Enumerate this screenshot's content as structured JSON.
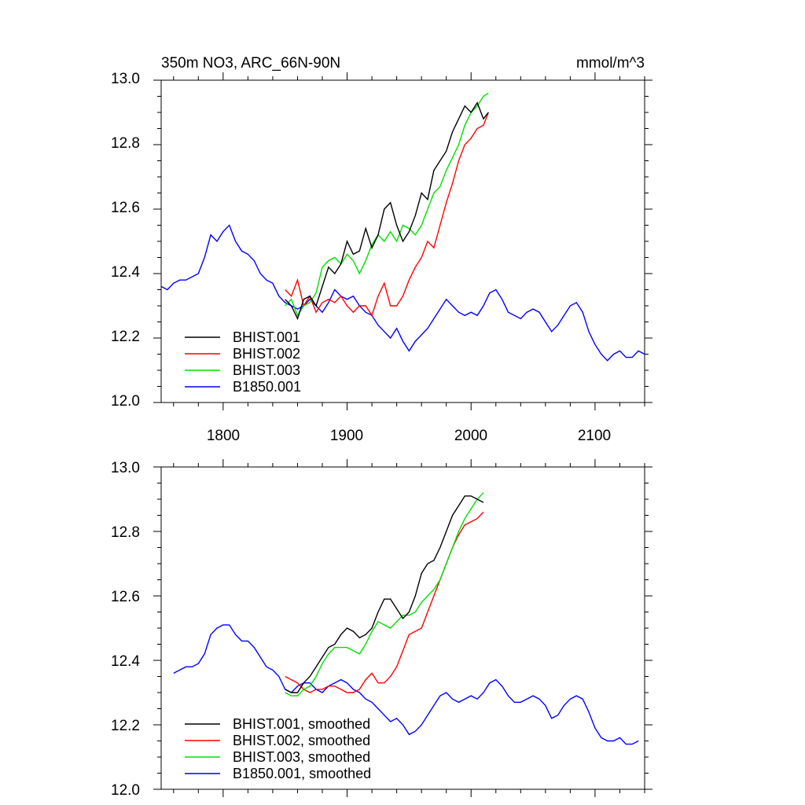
{
  "chart_data": [
    {
      "type": "line",
      "title": "350m NO3, ARC_66N-90N",
      "units": "mmol/m^3",
      "xlabel": "",
      "ylabel": "",
      "xlim": [
        1750,
        2140
      ],
      "ylim": [
        12.0,
        13.0
      ],
      "xticks": [
        1800,
        1900,
        2000,
        2100
      ],
      "yticks": [
        12.0,
        12.2,
        12.4,
        12.6,
        12.8,
        13.0
      ],
      "grid": false,
      "legend_position": "bottom-left",
      "series": [
        {
          "name": "BHIST.001",
          "color": "#000000",
          "smoothed": false,
          "x": [
            1850,
            1855,
            1860,
            1865,
            1870,
            1875,
            1880,
            1885,
            1890,
            1895,
            1900,
            1905,
            1910,
            1915,
            1920,
            1925,
            1930,
            1935,
            1940,
            1945,
            1950,
            1955,
            1960,
            1965,
            1970,
            1975,
            1980,
            1985,
            1990,
            1995,
            2000,
            2005,
            2010,
            2014
          ],
          "y": [
            12.32,
            12.3,
            12.26,
            12.32,
            12.33,
            12.3,
            12.36,
            12.42,
            12.4,
            12.43,
            12.5,
            12.46,
            12.47,
            12.54,
            12.48,
            12.52,
            12.6,
            12.62,
            12.55,
            12.5,
            12.53,
            12.58,
            12.65,
            12.63,
            12.72,
            12.75,
            12.78,
            12.84,
            12.88,
            12.92,
            12.9,
            12.93,
            12.88,
            12.9
          ]
        },
        {
          "name": "BHIST.002",
          "color": "#ff0000",
          "smoothed": false,
          "x": [
            1850,
            1855,
            1860,
            1865,
            1870,
            1875,
            1880,
            1885,
            1890,
            1895,
            1900,
            1905,
            1910,
            1915,
            1920,
            1925,
            1930,
            1935,
            1940,
            1945,
            1950,
            1955,
            1960,
            1965,
            1970,
            1975,
            1980,
            1985,
            1990,
            1995,
            2000,
            2005,
            2010,
            2014
          ],
          "y": [
            12.35,
            12.33,
            12.38,
            12.3,
            12.33,
            12.28,
            12.31,
            12.32,
            12.31,
            12.33,
            12.3,
            12.28,
            12.3,
            12.3,
            12.27,
            12.33,
            12.37,
            12.3,
            12.3,
            12.33,
            12.38,
            12.42,
            12.45,
            12.5,
            12.48,
            12.55,
            12.62,
            12.68,
            12.75,
            12.8,
            12.82,
            12.85,
            12.86,
            12.9
          ]
        },
        {
          "name": "BHIST.003",
          "color": "#00e000",
          "smoothed": false,
          "x": [
            1850,
            1855,
            1860,
            1865,
            1870,
            1875,
            1880,
            1885,
            1890,
            1895,
            1900,
            1905,
            1910,
            1915,
            1920,
            1925,
            1930,
            1935,
            1940,
            1945,
            1950,
            1955,
            1960,
            1965,
            1970,
            1975,
            1980,
            1985,
            1990,
            1995,
            2000,
            2005,
            2010,
            2014
          ],
          "y": [
            12.3,
            12.32,
            12.27,
            12.3,
            12.31,
            12.34,
            12.42,
            12.44,
            12.45,
            12.43,
            12.46,
            12.44,
            12.4,
            12.44,
            12.49,
            12.52,
            12.5,
            12.53,
            12.5,
            12.55,
            12.54,
            12.52,
            12.55,
            12.6,
            12.65,
            12.67,
            12.72,
            12.76,
            12.8,
            12.86,
            12.9,
            12.92,
            12.95,
            12.96
          ]
        },
        {
          "name": "B1850.001",
          "color": "#0000ff",
          "smoothed": false,
          "x": [
            1750,
            1755,
            1760,
            1765,
            1770,
            1775,
            1780,
            1785,
            1790,
            1795,
            1800,
            1805,
            1810,
            1815,
            1820,
            1825,
            1830,
            1835,
            1840,
            1845,
            1850,
            1855,
            1860,
            1865,
            1870,
            1875,
            1880,
            1885,
            1890,
            1895,
            1900,
            1905,
            1910,
            1915,
            1920,
            1925,
            1930,
            1935,
            1940,
            1945,
            1950,
            1955,
            1960,
            1965,
            1970,
            1975,
            1980,
            1985,
            1990,
            1995,
            2000,
            2005,
            2010,
            2015,
            2020,
            2025,
            2030,
            2035,
            2040,
            2045,
            2050,
            2055,
            2060,
            2065,
            2070,
            2075,
            2080,
            2085,
            2090,
            2095,
            2100,
            2105,
            2110,
            2115,
            2120,
            2125,
            2130,
            2135,
            2140
          ],
          "y": [
            12.36,
            12.35,
            12.37,
            12.38,
            12.38,
            12.39,
            12.4,
            12.45,
            12.52,
            12.5,
            12.53,
            12.55,
            12.5,
            12.47,
            12.46,
            12.44,
            12.4,
            12.38,
            12.37,
            12.33,
            12.31,
            12.3,
            12.29,
            12.3,
            12.32,
            12.3,
            12.28,
            12.31,
            12.35,
            12.33,
            12.32,
            12.33,
            12.3,
            12.28,
            12.27,
            12.24,
            12.22,
            12.2,
            12.23,
            12.19,
            12.16,
            12.19,
            12.21,
            12.23,
            12.26,
            12.29,
            12.32,
            12.3,
            12.28,
            12.27,
            12.28,
            12.27,
            12.3,
            12.34,
            12.35,
            12.32,
            12.28,
            12.27,
            12.26,
            12.28,
            12.29,
            12.28,
            12.25,
            12.22,
            12.24,
            12.27,
            12.3,
            12.31,
            12.28,
            12.22,
            12.18,
            12.15,
            12.13,
            12.15,
            12.16,
            12.14,
            12.14,
            12.16,
            12.15
          ]
        }
      ]
    },
    {
      "type": "line",
      "title": "",
      "xlabel": "",
      "ylabel": "",
      "xlim": [
        1750,
        2140
      ],
      "ylim": [
        12.0,
        13.0
      ],
      "xticks": [
        1800,
        1900,
        2000,
        2100
      ],
      "yticks": [
        12.0,
        12.2,
        12.4,
        12.6,
        12.8,
        13.0
      ],
      "grid": false,
      "legend_position": "bottom-left",
      "series": [
        {
          "name": "BHIST.001, smoothed",
          "color": "#000000",
          "smoothed": true,
          "x": [
            1850,
            1855,
            1860,
            1865,
            1870,
            1875,
            1880,
            1885,
            1890,
            1895,
            1900,
            1905,
            1910,
            1915,
            1920,
            1925,
            1930,
            1935,
            1940,
            1945,
            1950,
            1955,
            1960,
            1965,
            1970,
            1975,
            1980,
            1985,
            1990,
            1995,
            2000,
            2005,
            2010
          ],
          "y": [
            12.31,
            12.3,
            12.3,
            12.33,
            12.35,
            12.38,
            12.41,
            12.44,
            12.45,
            12.48,
            12.5,
            12.49,
            12.47,
            12.48,
            12.5,
            12.55,
            12.59,
            12.59,
            12.56,
            12.53,
            12.55,
            12.6,
            12.67,
            12.7,
            12.71,
            12.75,
            12.8,
            12.85,
            12.88,
            12.91,
            12.91,
            12.9,
            12.89
          ]
        },
        {
          "name": "BHIST.002, smoothed",
          "color": "#ff0000",
          "smoothed": true,
          "x": [
            1850,
            1855,
            1860,
            1865,
            1870,
            1875,
            1880,
            1885,
            1890,
            1895,
            1900,
            1905,
            1910,
            1915,
            1920,
            1925,
            1930,
            1935,
            1940,
            1945,
            1950,
            1955,
            1960,
            1965,
            1970,
            1975,
            1980,
            1985,
            1990,
            1995,
            2000,
            2005,
            2010
          ],
          "y": [
            12.35,
            12.34,
            12.33,
            12.31,
            12.3,
            12.31,
            12.31,
            12.32,
            12.32,
            12.31,
            12.3,
            12.3,
            12.31,
            12.34,
            12.36,
            12.33,
            12.33,
            12.35,
            12.38,
            12.43,
            12.48,
            12.49,
            12.5,
            12.55,
            12.6,
            12.65,
            12.7,
            12.75,
            12.79,
            12.82,
            12.83,
            12.84,
            12.86
          ]
        },
        {
          "name": "BHIST.003, smoothed",
          "color": "#00e000",
          "smoothed": true,
          "x": [
            1850,
            1855,
            1860,
            1865,
            1870,
            1875,
            1880,
            1885,
            1890,
            1895,
            1900,
            1905,
            1910,
            1915,
            1920,
            1925,
            1930,
            1935,
            1940,
            1945,
            1950,
            1955,
            1960,
            1965,
            1970,
            1975,
            1980,
            1985,
            1990,
            1995,
            2000,
            2005,
            2010
          ],
          "y": [
            12.3,
            12.29,
            12.29,
            12.31,
            12.32,
            12.35,
            12.39,
            12.42,
            12.44,
            12.44,
            12.44,
            12.43,
            12.42,
            12.45,
            12.49,
            12.52,
            12.51,
            12.5,
            12.52,
            12.54,
            12.54,
            12.55,
            12.58,
            12.6,
            12.62,
            12.65,
            12.7,
            12.75,
            12.8,
            12.84,
            12.87,
            12.9,
            12.92
          ]
        },
        {
          "name": "B1850.001, smoothed",
          "color": "#0000ff",
          "smoothed": true,
          "x": [
            1760,
            1765,
            1770,
            1775,
            1780,
            1785,
            1790,
            1795,
            1800,
            1805,
            1810,
            1815,
            1820,
            1825,
            1830,
            1835,
            1840,
            1845,
            1850,
            1855,
            1860,
            1865,
            1870,
            1875,
            1880,
            1885,
            1890,
            1895,
            1900,
            1905,
            1910,
            1915,
            1920,
            1925,
            1930,
            1935,
            1940,
            1945,
            1950,
            1955,
            1960,
            1965,
            1970,
            1975,
            1980,
            1985,
            1990,
            1995,
            2000,
            2005,
            2010,
            2015,
            2020,
            2025,
            2030,
            2035,
            2040,
            2045,
            2050,
            2055,
            2060,
            2065,
            2070,
            2075,
            2080,
            2085,
            2090,
            2095,
            2100,
            2105,
            2110,
            2115,
            2120,
            2125,
            2130,
            2135
          ],
          "y": [
            12.36,
            12.37,
            12.38,
            12.38,
            12.39,
            12.42,
            12.48,
            12.5,
            12.51,
            12.51,
            12.48,
            12.46,
            12.46,
            12.44,
            12.41,
            12.38,
            12.37,
            12.35,
            12.31,
            12.3,
            12.32,
            12.33,
            12.33,
            12.31,
            12.3,
            12.32,
            12.33,
            12.34,
            12.33,
            12.31,
            12.3,
            12.28,
            12.27,
            12.25,
            12.23,
            12.21,
            12.22,
            12.2,
            12.17,
            12.18,
            12.2,
            12.23,
            12.26,
            12.29,
            12.3,
            12.28,
            12.27,
            12.28,
            12.29,
            12.28,
            12.3,
            12.33,
            12.34,
            12.32,
            12.29,
            12.27,
            12.27,
            12.28,
            12.29,
            12.28,
            12.26,
            12.22,
            12.23,
            12.26,
            12.28,
            12.29,
            12.28,
            12.24,
            12.19,
            12.16,
            12.15,
            12.15,
            12.16,
            12.14,
            12.14,
            12.15
          ]
        }
      ]
    }
  ]
}
